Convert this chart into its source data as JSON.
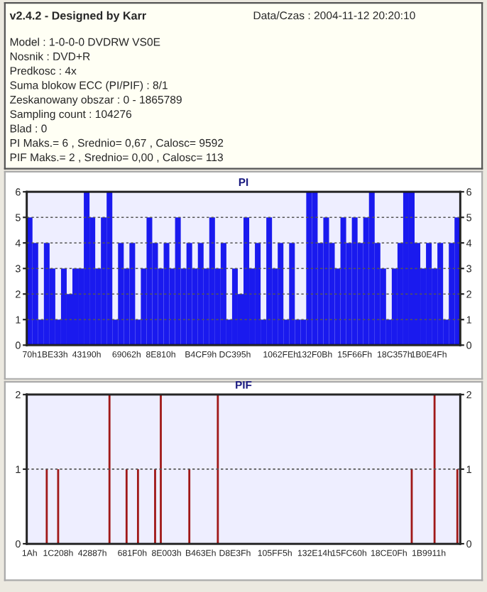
{
  "chart_data": [
    {
      "type": "other",
      "title": "v2.4.2 - Designed by Karr",
      "annotations": [
        "Data/Czas : 2004-11-12 20:20:10",
        "Model : 1-0-0-0 DVDRW VS0E",
        "Nosnik : DVD+R",
        "Predkosc : 4x",
        "Suma blokow ECC (PI/PIF) : 8/1",
        "Zeskanowany obszar : 0 - 1865789",
        "Sampling count : 104276",
        "Blad : 0",
        "PI Maks.= 6 , Srednio= 0,67 , Calosc= 9592",
        "PIF Maks.= 2 , Srednio= 0,00 , Calosc= 113"
      ]
    },
    {
      "type": "bar",
      "title": "PI",
      "color": "#1a1aee",
      "grid": "y",
      "categories": [
        "70h",
        null,
        null,
        null,
        "1BE33h",
        null,
        null,
        null,
        null,
        null,
        "43190h",
        null,
        null,
        null,
        null,
        null,
        null,
        "69062h",
        null,
        null,
        null,
        null,
        null,
        "8E810h",
        null,
        null,
        null,
        null,
        null,
        null,
        "B4CF9h",
        null,
        null,
        null,
        null,
        null,
        "DC395h",
        null,
        null,
        null,
        null,
        null,
        null,
        null,
        "1062FEh",
        null,
        null,
        null,
        null,
        null,
        "132F0Bh",
        null,
        null,
        null,
        null,
        null,
        null,
        "15F66Fh",
        null,
        null,
        null,
        null,
        null,
        null,
        "18C357h",
        null,
        null,
        null,
        null,
        null,
        "1B0E4Fh",
        null,
        null,
        null,
        null,
        null
      ],
      "values": [
        5,
        4,
        1,
        4,
        3,
        1,
        3,
        2,
        3,
        3,
        6,
        5,
        3,
        5,
        6,
        1,
        4,
        3,
        4,
        1,
        3,
        5,
        4,
        3,
        4,
        3,
        5,
        3,
        4,
        3,
        4,
        3,
        5,
        3,
        4,
        1,
        3,
        2,
        5,
        3,
        4,
        1,
        5,
        3,
        4,
        1,
        4,
        1,
        1,
        6,
        6,
        4,
        5,
        4,
        3,
        5,
        4,
        5,
        4,
        5,
        6,
        4,
        3,
        1,
        3,
        4,
        6,
        6,
        4,
        3,
        4,
        3,
        4,
        1,
        4,
        5
      ],
      "ylim": [
        0,
        6
      ],
      "yticks": [
        0,
        1,
        2,
        3,
        4,
        5,
        6
      ],
      "y2lim": [
        0,
        6
      ],
      "y2ticks": [
        0,
        1,
        2,
        3,
        4,
        5,
        6
      ]
    },
    {
      "type": "bar",
      "title": "PIF",
      "color": "#a01818",
      "grid": "y",
      "categories": [
        "1Ah",
        null,
        null,
        null,
        null,
        "1C208h",
        null,
        null,
        null,
        null,
        null,
        "42887h",
        null,
        null,
        null,
        null,
        null,
        null,
        "681F0h",
        null,
        null,
        null,
        null,
        null,
        "8E003h",
        null,
        null,
        null,
        null,
        null,
        "B463Eh",
        null,
        null,
        null,
        null,
        null,
        "D8E3Fh",
        null,
        null,
        null,
        null,
        null,
        null,
        "105FF5h",
        null,
        null,
        null,
        null,
        null,
        null,
        "132E14h",
        null,
        null,
        null,
        null,
        null,
        "15FC60h",
        null,
        null,
        null,
        null,
        null,
        null,
        "18CE0Fh",
        null,
        null,
        null,
        null,
        null,
        null,
        "1B9911h",
        null,
        null,
        null,
        null,
        null
      ],
      "values": [
        0,
        0,
        0,
        1,
        0,
        1,
        0,
        0,
        0,
        0,
        0,
        0,
        0,
        0,
        2,
        0,
        0,
        1,
        0,
        1,
        0,
        0,
        1,
        2,
        0,
        0,
        0,
        0,
        1,
        0,
        0,
        0,
        0,
        2,
        0,
        0,
        0,
        0,
        0,
        0,
        0,
        0,
        0,
        0,
        0,
        0,
        0,
        0,
        0,
        0,
        0,
        0,
        0,
        0,
        0,
        0,
        0,
        0,
        0,
        0,
        0,
        0,
        0,
        0,
        0,
        0,
        0,
        1,
        0,
        0,
        0,
        2,
        0,
        0,
        0,
        1
      ],
      "ylim": [
        0,
        2
      ],
      "yticks": [
        0,
        1,
        2
      ],
      "y2lim": [
        0,
        2
      ],
      "y2ticks": [
        0,
        1,
        2
      ]
    }
  ]
}
